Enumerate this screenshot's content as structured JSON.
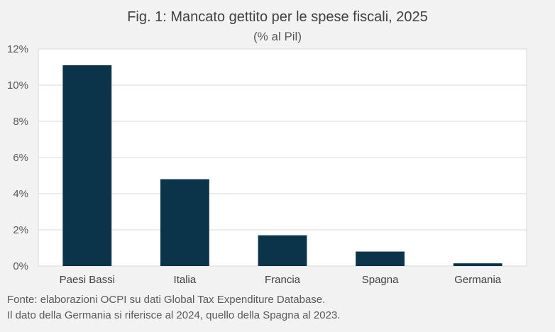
{
  "chart_data": {
    "type": "bar",
    "title": "Fig. 1: Mancato gettito per le spese fiscali, 2025",
    "subtitle": "(% al Pil)",
    "categories": [
      "Paesi Bassi",
      "Italia",
      "Francia",
      "Spagna",
      "Germania"
    ],
    "values": [
      11.1,
      4.8,
      1.7,
      0.8,
      0.15
    ],
    "ylim": [
      0,
      12
    ],
    "yticks": [
      0,
      2,
      4,
      6,
      8,
      10,
      12
    ],
    "ytick_labels": [
      "0%",
      "2%",
      "4%",
      "6%",
      "8%",
      "10%",
      "12%"
    ],
    "grid": true,
    "bar_color": "#0b3349",
    "plot_background": "#ffffff",
    "page_background": "#f2f2f2"
  },
  "notes": [
    "Fonte: elaborazioni OCPI su dati Global Tax Expenditure Database.",
    "Il dato della Germania si riferisce al 2024, quello della Spagna al 2023."
  ]
}
